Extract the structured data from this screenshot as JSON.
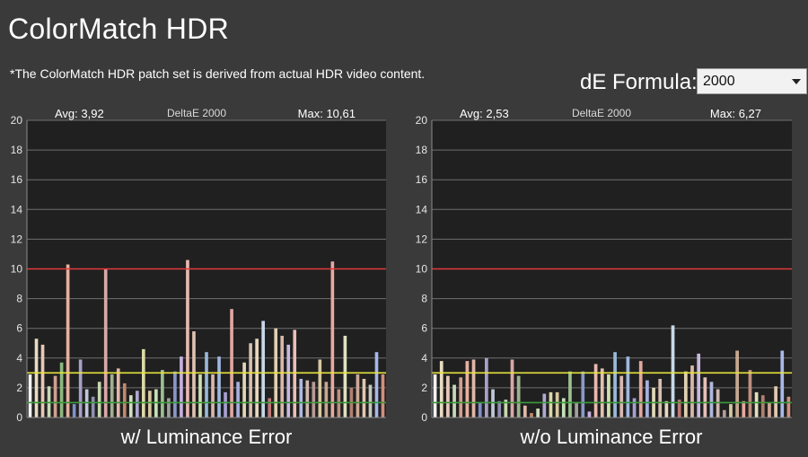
{
  "page": {
    "title": "ColorMatch HDR",
    "subtitle": "*The ColorMatch HDR patch set is derived from actual HDR video content.",
    "formula_label": "dE Formula:",
    "formula_value": "2000"
  },
  "colors": {
    "threshold_red": "#e0393a",
    "threshold_yellow": "#e6e33c",
    "threshold_green": "#3a9a3a",
    "plot_bg": "#202020",
    "grid": "#6e6e6e"
  },
  "chart_data": [
    {
      "type": "bar",
      "title": "DeltaE 2000",
      "avg_label": "Avg: 3,92",
      "max_label": "Max: 10,61",
      "caption": "w/ Luminance Error",
      "ylim": [
        0,
        20
      ],
      "yticks": [
        0,
        2,
        4,
        6,
        8,
        10,
        12,
        14,
        16,
        18,
        20
      ],
      "grid": true,
      "reference_lines": [
        {
          "value": 10,
          "color": "#e0393a"
        },
        {
          "value": 3,
          "color": "#e6e33c"
        },
        {
          "value": 1,
          "color": "#3a9a3a"
        }
      ],
      "values": [
        2.9,
        5.3,
        4.9,
        2.1,
        2.8,
        3.7,
        10.3,
        0.9,
        3.9,
        1.9,
        1.4,
        2.4,
        10.0,
        2.9,
        3.3,
        2.3,
        1.5,
        1.8,
        4.6,
        1.8,
        1.9,
        3.2,
        1.3,
        3.1,
        4.1,
        10.6,
        5.8,
        2.9,
        4.4,
        2.9,
        4.1,
        1.7,
        7.3,
        2.4,
        3.7,
        5.0,
        5.3,
        6.5,
        1.3,
        6.0,
        5.5,
        4.9,
        5.9,
        2.6,
        2.5,
        2.4,
        3.9,
        2.4,
        10.5,
        1.9,
        5.5,
        2.0,
        2.9,
        2.6,
        2.2,
        4.4,
        2.9
      ],
      "colors": [
        "#f2f2f2",
        "#e8dcc0",
        "#e8c8b8",
        "#c8d8b8",
        "#d0a090",
        "#8cb880",
        "#e8b0a0",
        "#8090c8",
        "#a8a0c8",
        "#c0c8d8",
        "#9090b0",
        "#c8d8b0",
        "#d8a8a8",
        "#a0b090",
        "#e0b8a8",
        "#c08870",
        "#d0e0c0",
        "#b0a8d0",
        "#dcd8a8",
        "#d8c8a0",
        "#c8e0b8",
        "#9cc090",
        "#a0a0a0",
        "#8898c8",
        "#c8b0e0",
        "#e8b8b0",
        "#e0c0b0",
        "#d0e0b0",
        "#9cb8d8",
        "#d8b8b0",
        "#a0b8e0",
        "#a8a0d0",
        "#e0a8a0",
        "#a8b0e0",
        "#e0d8b8",
        "#d8c0b0",
        "#e8d8c0",
        "#c8d8e8",
        "#c07878",
        "#e0d0b0",
        "#d8b8a8",
        "#c8b8e0",
        "#e8c0b8",
        "#b0b8e0",
        "#d0b8b0",
        "#b89898",
        "#d8c8a0",
        "#c8a890",
        "#e8a8a0",
        "#c09080",
        "#e0e0c0",
        "#b08070",
        "#d0a898",
        "#e0c8b0",
        "#c8c8c0",
        "#a8b8e8",
        "#d09080"
      ]
    },
    {
      "type": "bar",
      "title": "DeltaE 2000",
      "avg_label": "Avg: 2,53",
      "max_label": "Max: 6,27",
      "caption": "w/o Luminance Error",
      "ylim": [
        0,
        20
      ],
      "yticks": [
        0,
        2,
        4,
        6,
        8,
        10,
        12,
        14,
        16,
        18,
        20
      ],
      "grid": true,
      "reference_lines": [
        {
          "value": 10,
          "color": "#e0393a"
        },
        {
          "value": 3,
          "color": "#e6e33c"
        },
        {
          "value": 1,
          "color": "#3a9a3a"
        }
      ],
      "values": [
        2.9,
        3.8,
        2.8,
        2.2,
        2.7,
        3.8,
        3.9,
        1.0,
        4.0,
        1.9,
        1.1,
        1.2,
        3.9,
        2.8,
        0.8,
        0.3,
        0.6,
        1.6,
        1.7,
        1.7,
        1.3,
        3.1,
        1.0,
        3.1,
        0.4,
        3.6,
        3.3,
        2.9,
        4.4,
        2.8,
        4.1,
        1.3,
        3.8,
        2.5,
        2.0,
        2.6,
        1.1,
        6.2,
        1.2,
        3.1,
        3.5,
        4.3,
        2.7,
        2.4,
        1.9,
        0.5,
        0.9,
        4.5,
        1.1,
        3.2,
        1.7,
        1.5,
        1.0,
        2.1,
        4.5,
        1.4
      ],
      "colors": [
        "#f2f2f2",
        "#e8dcc0",
        "#e8c8b8",
        "#c8d8b8",
        "#d0a090",
        "#e8b0a0",
        "#e0b8a8",
        "#8090c8",
        "#a8a0c8",
        "#c0c8d8",
        "#9090b0",
        "#c8d8b0",
        "#d8a8a8",
        "#a0b090",
        "#e0b8a8",
        "#c08870",
        "#d0e0c0",
        "#b0a8d0",
        "#dcd8a8",
        "#d8c8a0",
        "#c8e0b8",
        "#9cc090",
        "#a0a0a0",
        "#8898c8",
        "#c8b0e0",
        "#e8b8b0",
        "#e0c0b0",
        "#d0e0b0",
        "#9cb8d8",
        "#d8b8b0",
        "#a0b8e0",
        "#a8a0d0",
        "#e0a8a0",
        "#a8b0e0",
        "#e0d8b8",
        "#d8c0b0",
        "#e8d8c0",
        "#c8d8e8",
        "#c07878",
        "#e0d0b0",
        "#d8b8a8",
        "#c8b8e0",
        "#e8c0b8",
        "#b0b8e0",
        "#d0b8b0",
        "#b89898",
        "#d8c8a0",
        "#c8a890",
        "#e8a8a0",
        "#c09080",
        "#e0e0c0",
        "#b08070",
        "#d0a898",
        "#e0c8b0",
        "#a8b8e8",
        "#d09080"
      ]
    }
  ]
}
